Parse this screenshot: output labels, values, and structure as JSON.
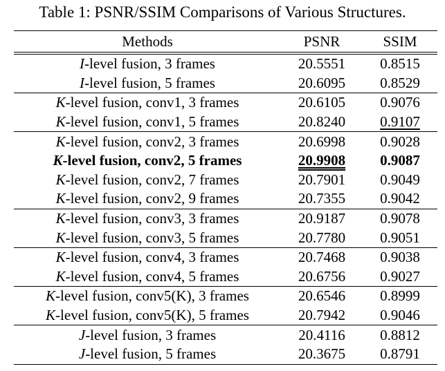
{
  "caption": "Table 1: PSNR/SSIM Comparisons of Various Structures.",
  "header": {
    "methods": "Methods",
    "psnr": "PSNR",
    "ssim": "SSIM"
  },
  "groups": [
    {
      "rows": [
        {
          "var": "I",
          "rest": "-level fusion, 3 frames",
          "psnr": "20.5551",
          "ssim": "0.8515"
        },
        {
          "var": "I",
          "rest": "-level fusion, 5 frames",
          "psnr": "20.6095",
          "ssim": "0.8529"
        }
      ]
    },
    {
      "rows": [
        {
          "var": "K",
          "rest": "-level fusion, conv1, 3 frames",
          "psnr": "20.6105",
          "ssim": "0.9076"
        },
        {
          "var": "K",
          "rest": "-level fusion, conv1, 5 frames",
          "psnr": "20.8240",
          "ssim": "0.9107",
          "ssim_mark": "underline"
        }
      ]
    },
    {
      "rows": [
        {
          "var": "K",
          "rest": "-level fusion, conv2, 3 frames",
          "psnr": "20.6998",
          "ssim": "0.9028"
        },
        {
          "var": "K",
          "rest": "-level fusion, conv2, 5 frames",
          "psnr": "20.9908",
          "ssim": "0.9087",
          "bold": true,
          "psnr_mark": "double-underline"
        },
        {
          "var": "K",
          "rest": "-level fusion, conv2, 7 frames",
          "psnr": "20.7901",
          "ssim": "0.9049"
        },
        {
          "var": "K",
          "rest": "-level fusion, conv2, 9 frames",
          "psnr": "20.7355",
          "ssim": "0.9042"
        }
      ]
    },
    {
      "rows": [
        {
          "var": "K",
          "rest": "-level fusion, conv3, 3 frames",
          "psnr": "20.9187",
          "ssim": "0.9078"
        },
        {
          "var": "K",
          "rest": "-level fusion, conv3, 5 frames",
          "psnr": "20.7780",
          "ssim": "0.9051"
        }
      ]
    },
    {
      "rows": [
        {
          "var": "K",
          "rest": "-level fusion, conv4, 3 frames",
          "psnr": "20.7468",
          "ssim": "0.9038"
        },
        {
          "var": "K",
          "rest": "-level fusion, conv4, 5 frames",
          "psnr": "20.6756",
          "ssim": "0.9027"
        }
      ]
    },
    {
      "rows": [
        {
          "var": "K",
          "rest": "-level fusion, conv5(K), 3 frames",
          "psnr": "20.6546",
          "ssim": "0.8999"
        },
        {
          "var": "K",
          "rest": "-level fusion, conv5(K), 5 frames",
          "psnr": "20.7942",
          "ssim": "0.9046"
        }
      ]
    },
    {
      "rows": [
        {
          "var": "J",
          "rest": "-level fusion, 3 frames",
          "psnr": "20.4116",
          "ssim": "0.8812"
        },
        {
          "var": "J",
          "rest": "-level fusion, 5 frames",
          "psnr": "20.3675",
          "ssim": "0.8791"
        }
      ]
    }
  ]
}
